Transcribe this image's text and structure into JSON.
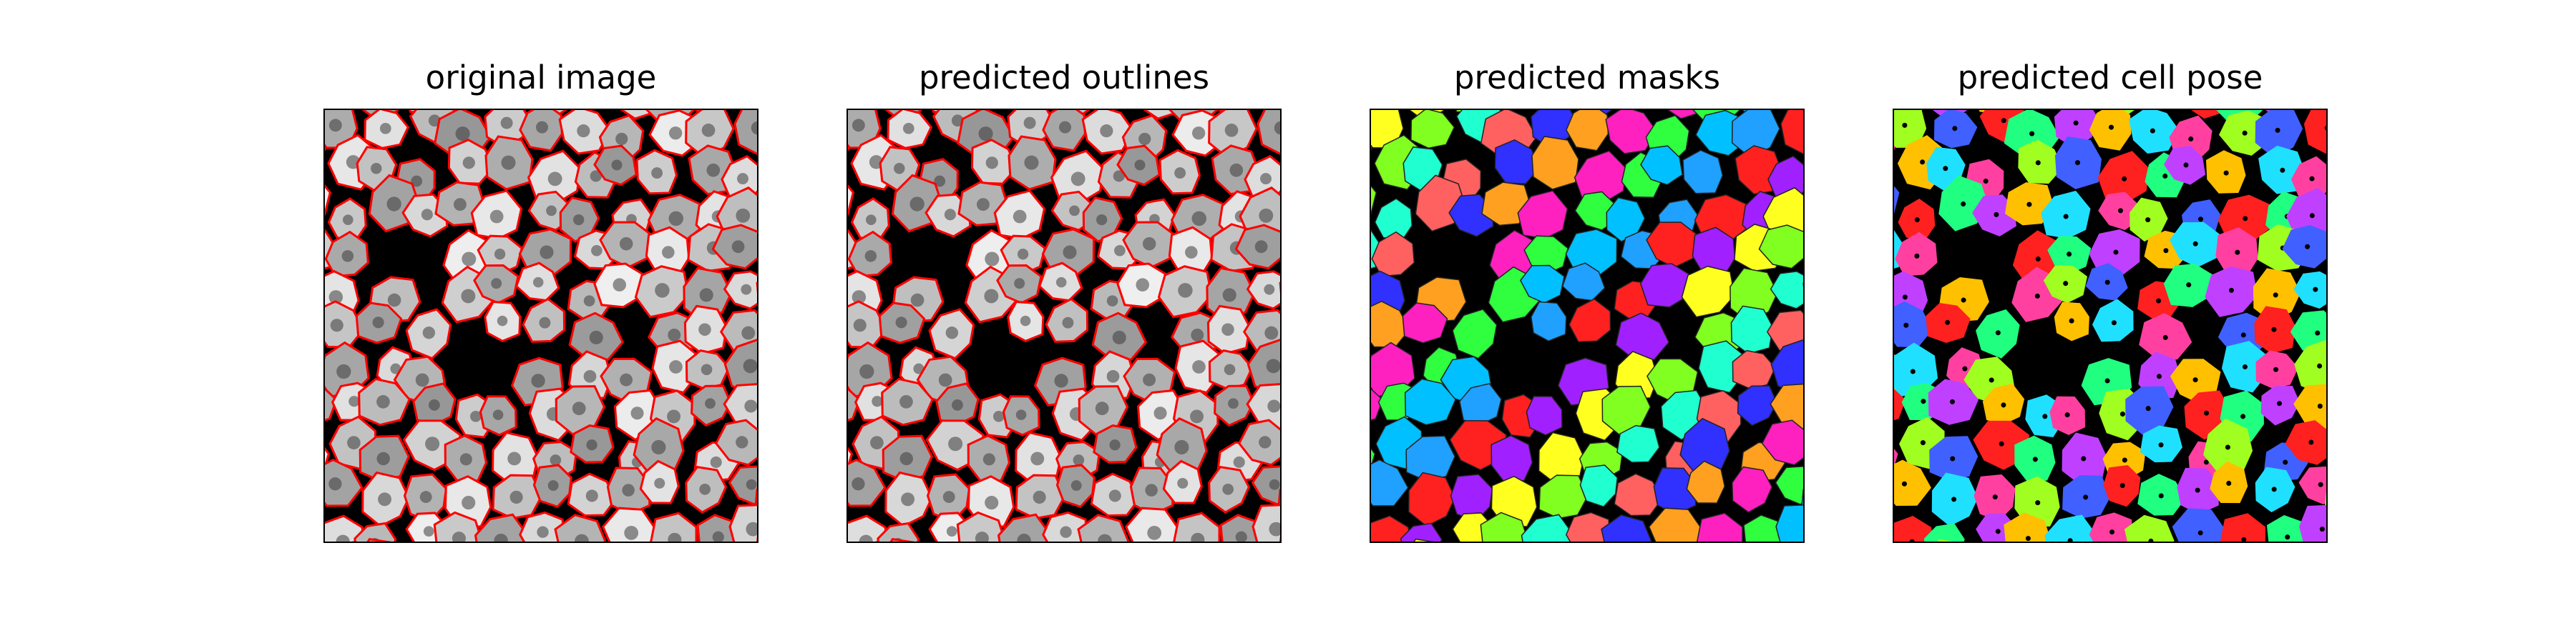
{
  "figure": {
    "panels": [
      {
        "title": "original image"
      },
      {
        "title": "predicted outlines"
      },
      {
        "title": "predicted masks"
      },
      {
        "title": "predicted cell pose"
      }
    ],
    "colors": {
      "outline": "#ff0000",
      "background": "#000000",
      "cell_gray": "#bdbdbd",
      "mask_palette": [
        "#ff2020",
        "#ffa020",
        "#ffff20",
        "#30ff40",
        "#20ffd0",
        "#20a0ff",
        "#3030ff",
        "#a020ff",
        "#ff20c0",
        "#80ff20",
        "#00c0ff",
        "#ff6060"
      ],
      "flow_palette": [
        "#ff2020",
        "#ffc000",
        "#a0ff20",
        "#20ff80",
        "#20e0ff",
        "#4060ff",
        "#c040ff",
        "#ff40a0"
      ]
    }
  }
}
